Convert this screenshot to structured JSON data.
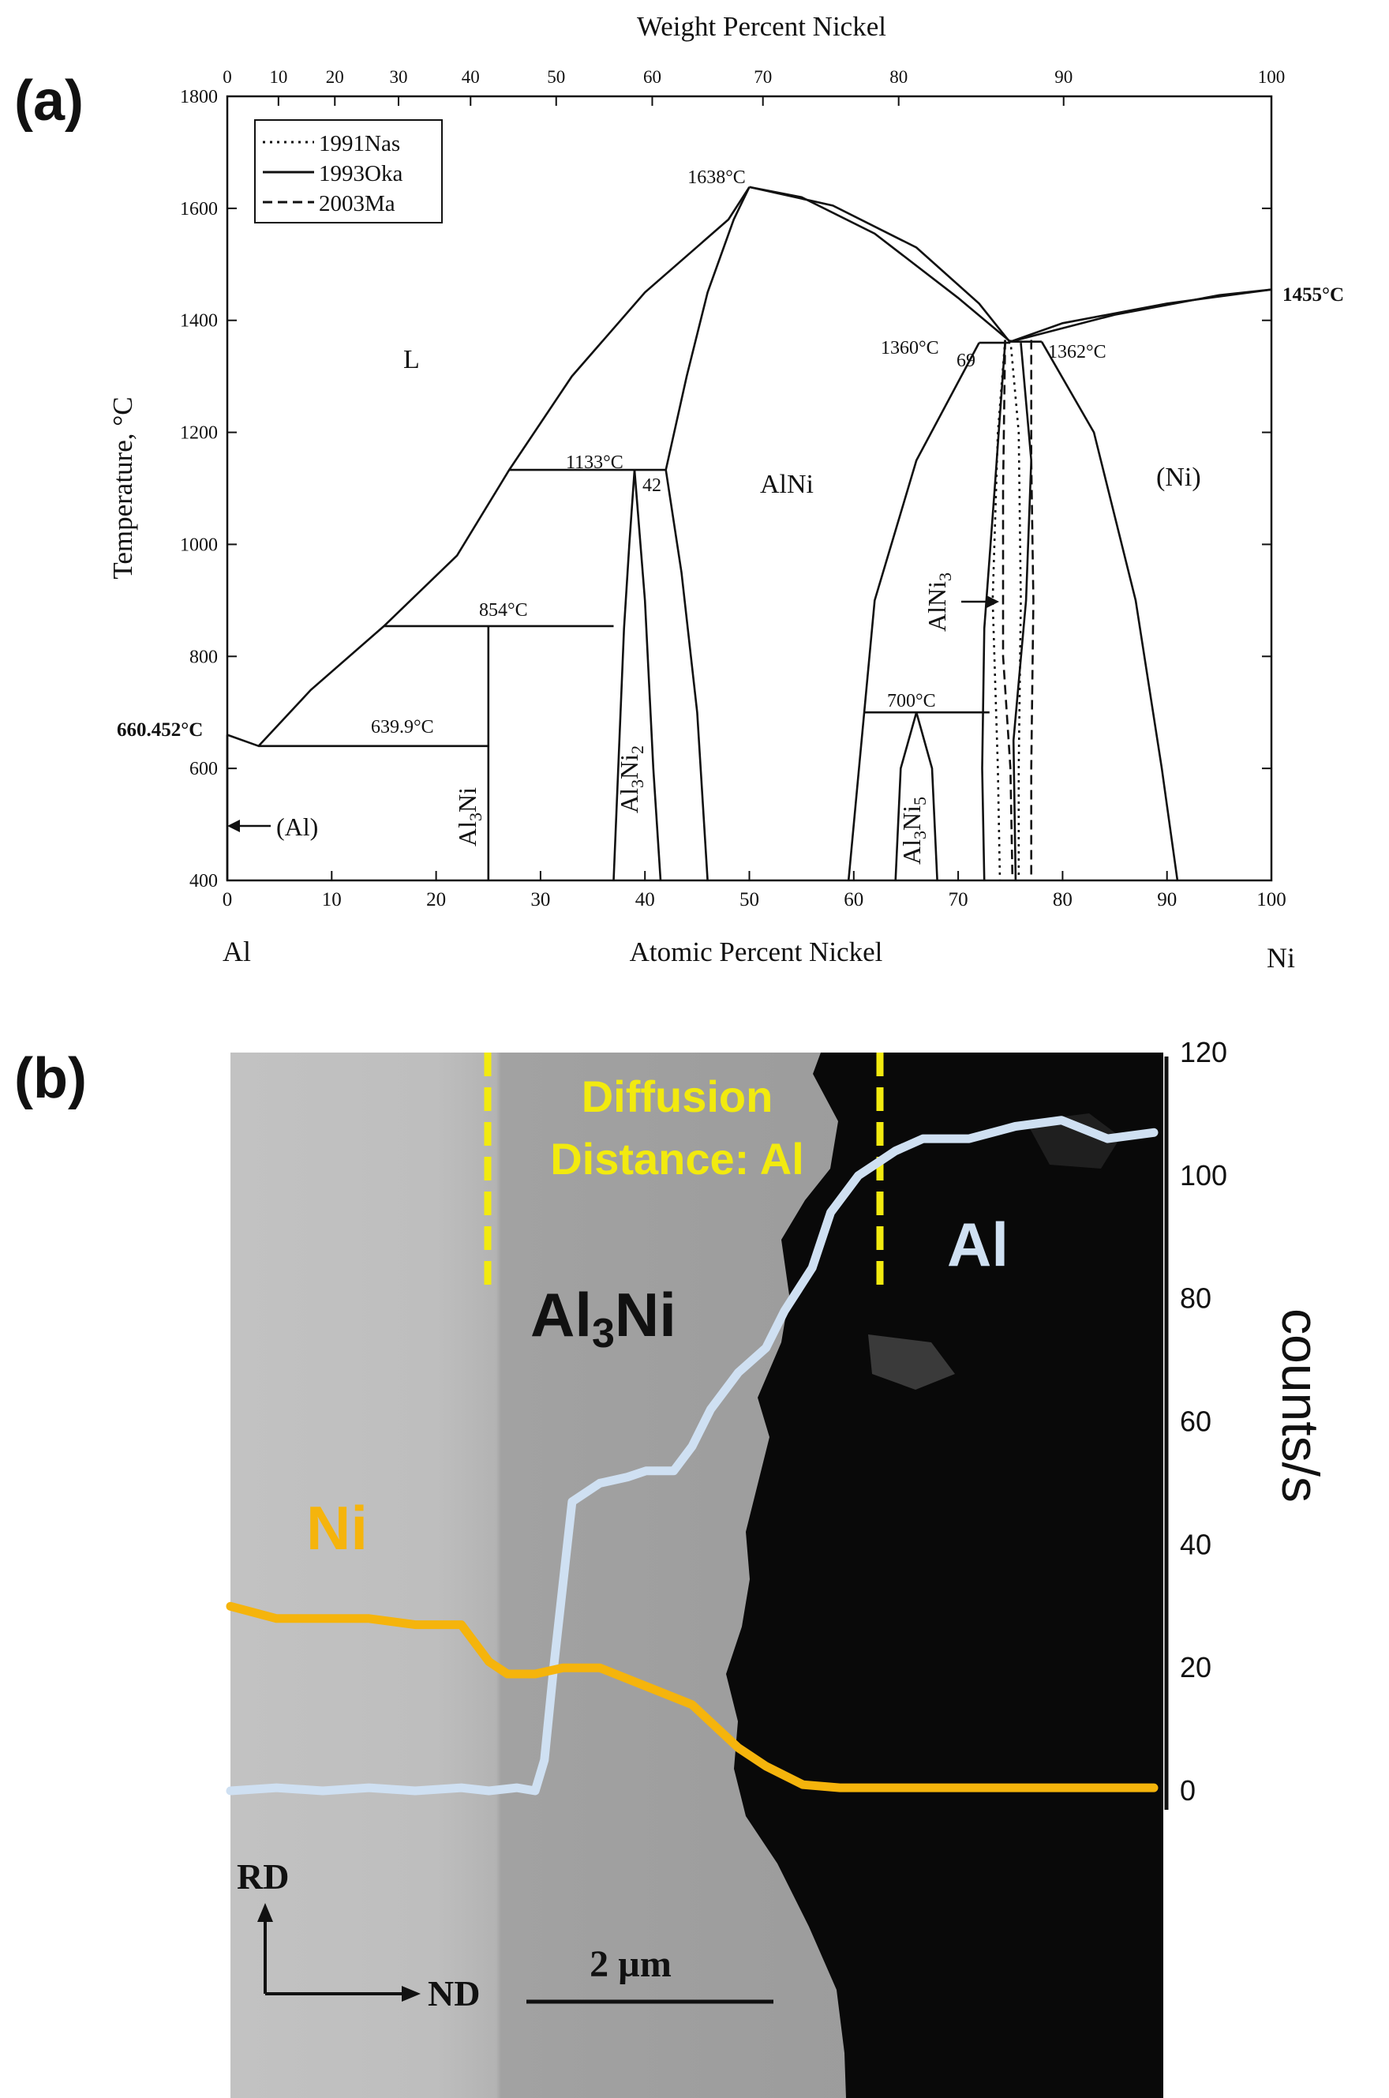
{
  "panels": {
    "a_label": "(a)",
    "b_label": "(b)"
  },
  "chart_data": [
    {
      "type": "line",
      "panel": "(a)",
      "title": "",
      "xlabel": "Atomic Percent Nickel",
      "x2label": "Weight Percent Nickel",
      "ylabel": "Temperature, °C",
      "xlim": [
        0,
        100
      ],
      "ylim": [
        400,
        1800
      ],
      "x_ticks": [
        0,
        10,
        20,
        30,
        40,
        50,
        60,
        70,
        80,
        90,
        100
      ],
      "x2_ticks": [
        0,
        10,
        20,
        30,
        40,
        50,
        60,
        70,
        80,
        90,
        100
      ],
      "y_ticks": [
        400,
        600,
        800,
        1000,
        1200,
        1400,
        1600,
        1800
      ],
      "end_left": "Al",
      "end_right": "Ni",
      "legend": {
        "position": "top-left",
        "entries": [
          {
            "name": "1991Nas",
            "dash": "dotted"
          },
          {
            "name": "1993Oka",
            "dash": "solid"
          },
          {
            "name": "2003Ma",
            "dash": "dashed"
          }
        ]
      },
      "phase_labels": {
        "liquid": "L",
        "alni": "AlNi",
        "ni": "(Ni)",
        "al": "(Al)",
        "al3ni_base": "Al",
        "al3ni_sub": "3",
        "al3ni_tail": "Ni",
        "al3ni2_base": "Al",
        "al3ni2_sub": "3",
        "al3ni2_mid": "Ni",
        "al3ni2_sub2": "2",
        "al3ni5_base": "Al",
        "al3ni5_sub": "3",
        "al3ni5_mid": "Ni",
        "al3ni5_sub2": "5",
        "alni3_base": "AlNi",
        "alni3_sub": "3"
      },
      "annotations": {
        "t1638": "1638°C",
        "t1455": "1455°C",
        "t1360": "1360°C",
        "t1362": "1362°C",
        "c69": "69",
        "t1133": "1133°C",
        "c42": "42",
        "t854": "854°C",
        "t700": "700°C",
        "t660": "660.452°C",
        "t6399": "639.9°C"
      },
      "horizontal_lines": [
        {
          "x": [
            3,
            25
          ],
          "y": 639.9
        },
        {
          "x": [
            15,
            37
          ],
          "y": 854
        },
        {
          "x": [
            27,
            42
          ],
          "y": 1133
        },
        {
          "x": [
            61,
            73
          ],
          "y": 700
        },
        {
          "x": [
            72,
            75
          ],
          "y": 1360
        },
        {
          "x": [
            75,
            78
          ],
          "y": 1362
        }
      ],
      "curves": [
        {
          "name": "liquidus-al",
          "points": [
            [
              0,
              660
            ],
            [
              3,
              640
            ],
            [
              8,
              740
            ],
            [
              15,
              854
            ],
            [
              22,
              980
            ],
            [
              27,
              1133
            ],
            [
              33,
              1300
            ],
            [
              40,
              1450
            ],
            [
              48,
              1580
            ],
            [
              50,
              1638
            ]
          ]
        },
        {
          "name": "liquidus-ni",
          "points": [
            [
              50,
              1638
            ],
            [
              55,
              1620
            ],
            [
              62,
              1555
            ],
            [
              70,
              1440
            ],
            [
              75,
              1362
            ],
            [
              80,
              1395
            ],
            [
              90,
              1430
            ],
            [
              100,
              1455
            ]
          ]
        },
        {
          "name": "alni-left",
          "points": [
            [
              42,
              1133
            ],
            [
              44,
              1300
            ],
            [
              46,
              1450
            ],
            [
              48.5,
              1580
            ],
            [
              50,
              1638
            ]
          ]
        },
        {
          "name": "alni-left-lower",
          "points": [
            [
              42,
              1133
            ],
            [
              43.5,
              950
            ],
            [
              45,
              700
            ],
            [
              46,
              400
            ]
          ]
        },
        {
          "name": "alni-right",
          "points": [
            [
              50,
              1638
            ],
            [
              58,
              1605
            ],
            [
              66,
              1530
            ],
            [
              72,
              1430
            ],
            [
              75,
              1360
            ]
          ]
        },
        {
          "name": "alni-right-lower",
          "points": [
            [
              72,
              1360
            ],
            [
              66,
              1150
            ],
            [
              62,
              900
            ],
            [
              60,
              500
            ],
            [
              59.5,
              400
            ]
          ]
        },
        {
          "name": "alni3-left",
          "points": [
            [
              74.5,
              1360
            ],
            [
              73.5,
              1100
            ],
            [
              72.5,
              850
            ],
            [
              72.3,
              600
            ],
            [
              72.5,
              400
            ]
          ]
        },
        {
          "name": "alni3-right",
          "points": [
            [
              76,
              1360
            ],
            [
              77,
              1150
            ],
            [
              76.5,
              900
            ],
            [
              75.3,
              650
            ],
            [
              75.5,
              400
            ]
          ]
        },
        {
          "name": "ni-solvus",
          "points": [
            [
              78,
              1362
            ],
            [
              83,
              1200
            ],
            [
              87,
              900
            ],
            [
              89.5,
              600
            ],
            [
              91,
              400
            ]
          ]
        },
        {
          "name": "ni-liquidus-inner",
          "points": [
            [
              75,
              1362
            ],
            [
              85,
              1410
            ],
            [
              95,
              1445
            ],
            [
              100,
              1455
            ]
          ]
        },
        {
          "name": "al3ni2-left",
          "points": [
            [
              37,
              400
            ],
            [
              38,
              850
            ],
            [
              38.5,
              1000
            ],
            [
              39,
              1133
            ]
          ]
        },
        {
          "name": "al3ni2-right",
          "points": [
            [
              39,
              1133
            ],
            [
              40,
              900
            ],
            [
              40.8,
              600
            ],
            [
              41.5,
              400
            ]
          ]
        },
        {
          "name": "al3ni5-left",
          "points": [
            [
              64,
              400
            ],
            [
              64.5,
              600
            ],
            [
              66,
              700
            ]
          ]
        },
        {
          "name": "al3ni5-right",
          "points": [
            [
              66,
              700
            ],
            [
              67.5,
              600
            ],
            [
              68,
              400
            ]
          ]
        },
        {
          "name": "al3ni-line",
          "points": [
            [
              25,
              400
            ],
            [
              25,
              854
            ]
          ]
        },
        {
          "name": "al-solvus",
          "points": [
            [
              0,
              400
            ],
            [
              0,
              660
            ]
          ]
        }
      ],
      "dotted_curves": [
        {
          "name": "1991Nas-left",
          "points": [
            [
              74.5,
              1365
            ],
            [
              73.8,
              1200
            ],
            [
              73.3,
              900
            ],
            [
              73.8,
              600
            ],
            [
              74,
              400
            ]
          ]
        },
        {
          "name": "1991Nas-right",
          "points": [
            [
              75,
              1365
            ],
            [
              75.8,
              1200
            ],
            [
              76,
              900
            ],
            [
              75.8,
              600
            ],
            [
              75.8,
              400
            ]
          ]
        }
      ],
      "dashed_curves": [
        {
          "name": "2003Ma-left",
          "points": [
            [
              74.5,
              1365
            ],
            [
              74.3,
              1100
            ],
            [
              74.3,
              800
            ],
            [
              75,
              600
            ],
            [
              75.2,
              400
            ]
          ]
        },
        {
          "name": "2003Ma-right",
          "points": [
            [
              77,
              1365
            ],
            [
              77,
              1150
            ],
            [
              77.2,
              900
            ],
            [
              77,
              600
            ],
            [
              77,
              400
            ]
          ]
        }
      ]
    },
    {
      "type": "line",
      "panel": "(b)",
      "title": "",
      "ylabel": "counts/s",
      "ylim": [
        0,
        120
      ],
      "y_ticks": [
        0,
        20,
        40,
        60,
        80,
        100,
        120
      ],
      "labels": {
        "diffusion_1": "Diffusion",
        "diffusion_2": "Distance: Al",
        "al3ni_base": "Al",
        "al3ni_sub": "3",
        "al3ni_tail": "Ni",
        "al": "Al",
        "ni": "Ni",
        "rd": "RD",
        "nd": "ND",
        "scale": "2 µm"
      },
      "colors": {
        "al": "#cfe0f2",
        "ni": "#f5b40c",
        "dash": "#f2ea0f"
      },
      "series": [
        {
          "name": "Al",
          "x": [
            0,
            5,
            10,
            15,
            20,
            25,
            28,
            31,
            33,
            34,
            35,
            37,
            40,
            43,
            45,
            48,
            50,
            52,
            55,
            58,
            60,
            63,
            65,
            68,
            70,
            72,
            75,
            80,
            85,
            90,
            95,
            100
          ],
          "values": [
            0,
            0.5,
            0,
            0.5,
            0,
            0.5,
            0,
            0.5,
            0,
            5,
            20,
            47,
            50,
            51,
            52,
            52,
            56,
            62,
            68,
            72,
            78,
            85,
            94,
            100,
            102,
            104,
            106,
            106,
            108,
            109,
            106,
            107
          ]
        },
        {
          "name": "Ni",
          "x": [
            0,
            5,
            10,
            15,
            20,
            25,
            28,
            30,
            33,
            36,
            40,
            45,
            50,
            55,
            58,
            62,
            66,
            70,
            80,
            90,
            100
          ],
          "values": [
            30,
            28,
            28,
            28,
            27,
            27,
            21,
            19,
            19,
            20,
            20,
            17,
            14,
            7,
            4,
            1,
            0.5,
            0.5,
            0.5,
            0.5,
            0.5
          ]
        }
      ]
    }
  ]
}
